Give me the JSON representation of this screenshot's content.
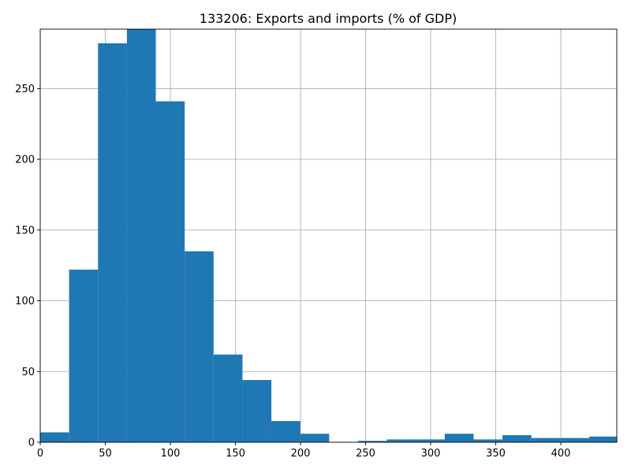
{
  "chart_data": {
    "type": "bar",
    "title": "133206: Exports and imports (% of GDP)",
    "xlabel": "",
    "ylabel": "",
    "xlim": [
      0,
      443
    ],
    "ylim": [
      0,
      292
    ],
    "grid": true,
    "bar_color": "#1f77b4",
    "bin_edges": [
      0,
      22.2,
      44.4,
      66.6,
      88.8,
      111.0,
      133.2,
      155.4,
      177.6,
      199.8,
      222.0,
      244.2,
      266.4,
      288.6,
      310.8,
      333.0,
      355.2,
      377.4,
      399.6,
      421.8,
      444.0
    ],
    "values": [
      7,
      122,
      282,
      292,
      241,
      135,
      62,
      44,
      15,
      6,
      0,
      1,
      2,
      2,
      6,
      2,
      5,
      3,
      3,
      4
    ],
    "xticks": [
      0,
      50,
      100,
      150,
      200,
      250,
      300,
      350,
      400
    ],
    "xtick_labels": [
      "0",
      "50",
      "100",
      "150",
      "200",
      "250",
      "300",
      "350",
      "400"
    ],
    "yticks": [
      0,
      50,
      100,
      150,
      200,
      250
    ],
    "ytick_labels": [
      "0",
      "50",
      "100",
      "150",
      "200",
      "250"
    ]
  }
}
